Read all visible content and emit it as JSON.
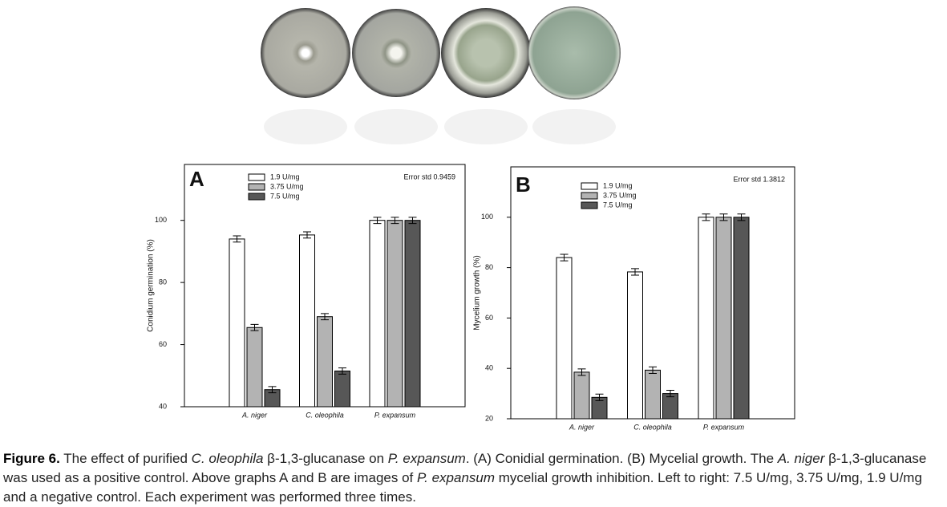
{
  "chart_data": [
    {
      "type": "bar",
      "panel": "A",
      "y_label": "Conidium germination (%)",
      "annotation": "Error std 0.9459",
      "categories": [
        "A. niger",
        "C. oleophila",
        "P. expansum"
      ],
      "series": [
        {
          "name": "1.9 U/mg",
          "color": "#ffffff",
          "values": [
            94,
            95.3,
            100
          ],
          "errors": [
            1,
            1,
            1
          ]
        },
        {
          "name": "3.75 U/mg",
          "color": "#b3b3b3",
          "values": [
            65.5,
            69,
            100
          ],
          "errors": [
            1,
            1,
            1
          ]
        },
        {
          "name": "7.5 U/mg",
          "color": "#575757",
          "values": [
            45.5,
            51.5,
            100
          ],
          "errors": [
            1,
            1,
            1
          ]
        }
      ],
      "ylim": [
        40,
        118
      ],
      "yticks": [
        40,
        60,
        80,
        100
      ]
    },
    {
      "type": "bar",
      "panel": "B",
      "y_label": "Mycelium growth (%)",
      "annotation": "Error std 1.3812",
      "categories": [
        "A. niger",
        "C. oleophila",
        "P. expansum"
      ],
      "series": [
        {
          "name": "1.9 U/mg",
          "color": "#ffffff",
          "values": [
            84,
            78.3,
            100
          ],
          "errors": [
            1.3,
            1.3,
            1.3
          ]
        },
        {
          "name": "3.75 U/mg",
          "color": "#b3b3b3",
          "values": [
            38.5,
            39.3,
            100
          ],
          "errors": [
            1.3,
            1.3,
            1.3
          ]
        },
        {
          "name": "7.5 U/mg",
          "color": "#575757",
          "values": [
            28.5,
            30,
            100
          ],
          "errors": [
            1.3,
            1.3,
            1.3
          ]
        }
      ],
      "ylim": [
        20,
        120
      ],
      "yticks": [
        20,
        40,
        60,
        80,
        100
      ]
    }
  ],
  "caption": [
    "Figure 6.",
    " The effect of purified ",
    "C. oleophila",
    " β-1,3-glucanase on ",
    "P. expansum",
    ". (A) Conidial germination. (B) Mycelial growth. The ",
    "A. niger",
    " β-1,3-glucanase was used as a positive control. Above graphs A and B are images of ",
    "P. expansum",
    " mycelial growth inhibition. Left to right: 7.5 U/mg, 3.75 U/mg, 1.9 U/mg and a negative control. Each experiment was performed three times."
  ]
}
